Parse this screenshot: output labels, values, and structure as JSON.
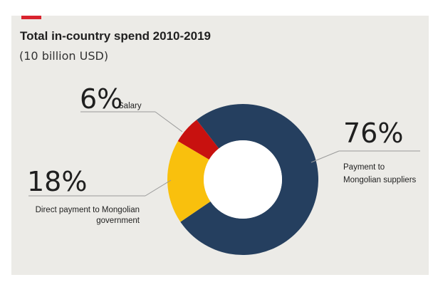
{
  "chart_data": {
    "type": "pie",
    "style": "donut",
    "title": "Total in-country spend 2010-2019",
    "subtitle": "(10 billion USD)",
    "slices": [
      {
        "label": "Payment to Mongolian suppliers",
        "label_lines": [
          "Payment to",
          "Mongolian suppliers"
        ],
        "value": 76,
        "value_label": "76%",
        "color": "#253f5f"
      },
      {
        "label": "Direct payment to Mongolian government",
        "label_lines": [
          "Direct payment to Mongolian",
          "government"
        ],
        "value": 18,
        "value_label": "18%",
        "color": "#f9c00d"
      },
      {
        "label": "Salary",
        "label_lines": [
          "Salary"
        ],
        "value": 6,
        "value_label": "6%",
        "color": "#c8110f"
      }
    ]
  },
  "colors": {
    "accent": "#d9232e",
    "panel": "#ecebe7"
  }
}
